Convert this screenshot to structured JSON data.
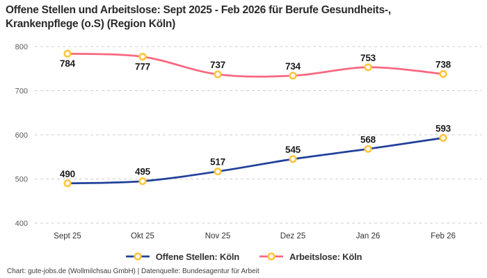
{
  "title": "Offene Stellen und Arbeitslose: Sept 2025 - Feb 2026 für Berufe Gesundheits-,\nKrankenpflege (o.S) (Region Köln)",
  "footer": "Chart: gute-jobs.de (Wollmilchsau GmbH) | Datenquelle: Bundesagentur für Arbeit",
  "colors": {
    "open_positions": "#21409A",
    "unemployed": "#F8687F",
    "marker_ring": "#FFC53C",
    "marker_fill": "#FFFFFF",
    "grid": "#CDCDCD"
  },
  "chart_data": {
    "type": "line",
    "categories": [
      "Sept 25",
      "Okt 25",
      "Nov 25",
      "Dez 25",
      "Jan 26",
      "Feb 26"
    ],
    "series": [
      {
        "name": "Offene Stellen: Köln",
        "color_key": "open_positions",
        "values": [
          490,
          495,
          517,
          545,
          568,
          593
        ],
        "label_positions": [
          "above",
          "above",
          "above",
          "above",
          "above",
          "above"
        ]
      },
      {
        "name": "Arbeitslose: Köln",
        "color_key": "unemployed",
        "values": [
          784,
          777,
          737,
          734,
          753,
          738
        ],
        "label_positions": [
          "below",
          "below",
          "above",
          "above",
          "above",
          "above"
        ]
      }
    ],
    "ylim": [
      400,
      800
    ],
    "yticks": [
      400,
      500,
      600,
      700,
      800
    ],
    "grid": "dashed-horizontal",
    "legend_position": "bottom"
  }
}
